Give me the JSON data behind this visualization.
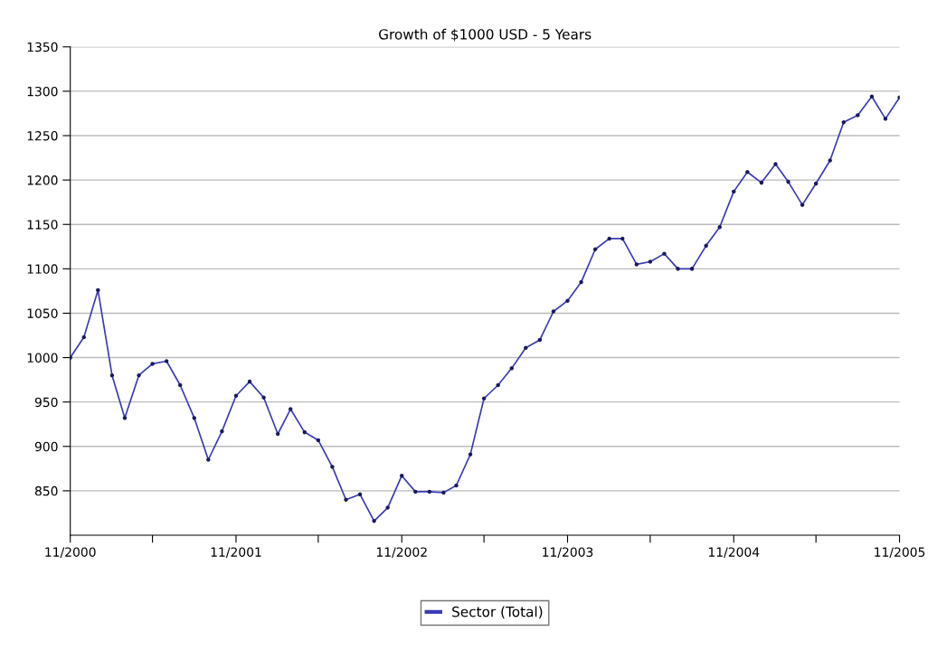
{
  "chart_data": {
    "type": "line",
    "title": "Growth of $1000 USD - 5 Years",
    "x": [
      "2000-11",
      "2000-12",
      "2001-01",
      "2001-02",
      "2001-03",
      "2001-04",
      "2001-05",
      "2001-06",
      "2001-07",
      "2001-08",
      "2001-09",
      "2001-10",
      "2001-11",
      "2001-12",
      "2002-01",
      "2002-02",
      "2002-03",
      "2002-04",
      "2002-05",
      "2002-06",
      "2002-07",
      "2002-08",
      "2002-09",
      "2002-10",
      "2002-11",
      "2002-12",
      "2003-01",
      "2003-02",
      "2003-03",
      "2003-04",
      "2003-05",
      "2003-06",
      "2003-07",
      "2003-08",
      "2003-09",
      "2003-10",
      "2003-11",
      "2003-12",
      "2004-01",
      "2004-02",
      "2004-03",
      "2004-04",
      "2004-05",
      "2004-06",
      "2004-07",
      "2004-08",
      "2004-09",
      "2004-10",
      "2004-11",
      "2004-12",
      "2005-01",
      "2005-02",
      "2005-03",
      "2005-04",
      "2005-05",
      "2005-06",
      "2005-07",
      "2005-08",
      "2005-09",
      "2005-10",
      "2005-11"
    ],
    "series": [
      {
        "name": "Sector (Total)",
        "color": "#3a3ab8",
        "values": [
          1000,
          1023,
          1076,
          980,
          932,
          980,
          993,
          996,
          969,
          932,
          885,
          917,
          957,
          973,
          955,
          914,
          942,
          916,
          907,
          877,
          840,
          846,
          816,
          831,
          867,
          849,
          849,
          848,
          856,
          891,
          954,
          969,
          988,
          1011,
          1020,
          1052,
          1064,
          1085,
          1122,
          1134,
          1134,
          1105,
          1108,
          1117,
          1100,
          1100,
          1126,
          1147,
          1187,
          1209,
          1197,
          1218,
          1198,
          1172,
          1196,
          1222,
          1265,
          1273,
          1294,
          1269,
          1293
        ]
      }
    ],
    "xlim": [
      "2000-11",
      "2005-11"
    ],
    "xticks": [
      {
        "value": "2000-11",
        "label": "11/2000"
      },
      {
        "value": "2001-05",
        "label": null
      },
      {
        "value": "2001-11",
        "label": "11/2001"
      },
      {
        "value": "2002-05",
        "label": null
      },
      {
        "value": "2002-11",
        "label": "11/2002"
      },
      {
        "value": "2003-05",
        "label": null
      },
      {
        "value": "2003-11",
        "label": "11/2003"
      },
      {
        "value": "2004-05",
        "label": null
      },
      {
        "value": "2004-11",
        "label": "11/2004"
      },
      {
        "value": "2005-05",
        "label": null
      },
      {
        "value": "2005-11",
        "label": "11/2005"
      }
    ],
    "ylim": [
      800,
      1350
    ],
    "yticks": [
      850,
      900,
      950,
      1000,
      1050,
      1100,
      1150,
      1200,
      1250,
      1300,
      1350
    ],
    "grid": "y",
    "legend": "bottom",
    "marker": "circle",
    "line_style": "solid"
  }
}
